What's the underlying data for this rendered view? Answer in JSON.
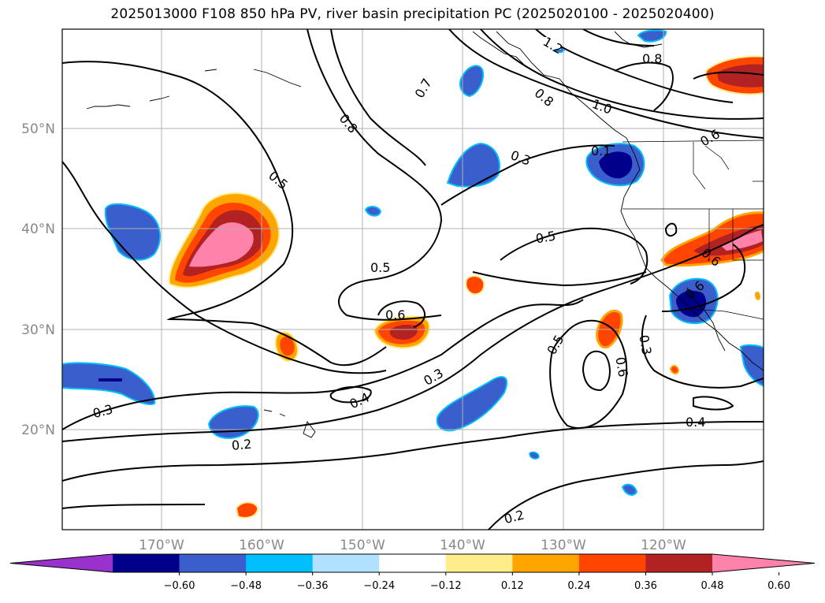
{
  "title": "2025013000 F108 850 hPa PV, river basin precipitation PC (2025020100 - 2025020400)",
  "lon_labels": [
    "170°W",
    "160°W",
    "150°W",
    "140°W",
    "130°W",
    "120°W"
  ],
  "lat_labels": [
    "50°N",
    "40°N",
    "30°N",
    "20°N"
  ],
  "contour_labels": [
    "1.2",
    "0.8",
    "0.7",
    "0.8",
    "1.0",
    "0.8",
    "0.6",
    "0.5",
    "0.3",
    "0.1",
    "0.5",
    "0.5",
    "0.6",
    "0.3",
    "0.4",
    "0.3",
    "0.2",
    "0.5",
    "0.6",
    "0.3",
    "0.4",
    "0.6",
    "0.6",
    "0.2"
  ],
  "colorbar": {
    "colors": [
      "#9932cc",
      "#00008b",
      "#3a5fcd",
      "#00bfff",
      "#b0e2ff",
      "#ffffff",
      "#ffec8b",
      "#ffa500",
      "#ff4500",
      "#b22222",
      "#ff82ab"
    ],
    "tick_labels": [
      "−0.60",
      "−0.48",
      "−0.36",
      "−0.24",
      "−0.12",
      "0.12",
      "0.24",
      "0.36",
      "0.48",
      "0.60"
    ]
  }
}
